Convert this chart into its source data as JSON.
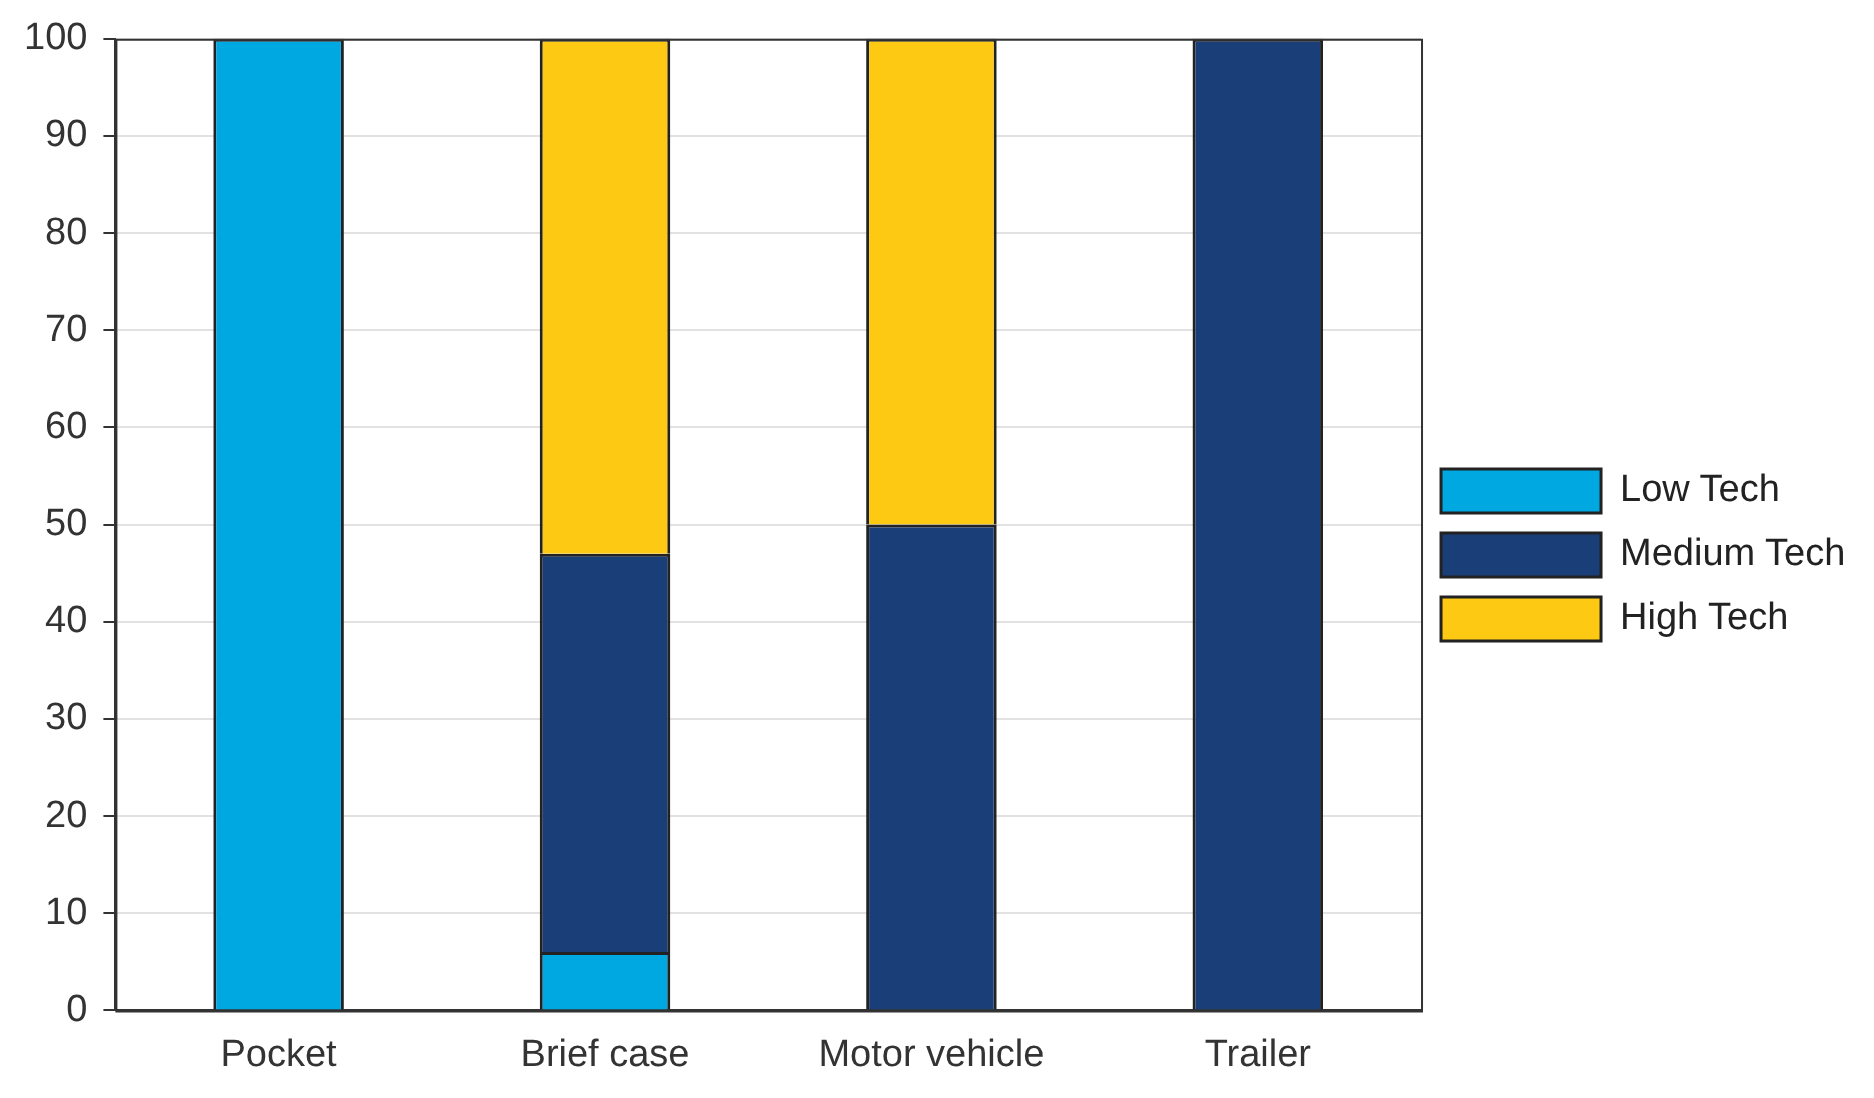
{
  "chart_data": {
    "type": "bar",
    "stacked": true,
    "categories": [
      "Pocket",
      "Brief case",
      "Motor vehicle",
      "Trailer"
    ],
    "series": [
      {
        "name": "Low Tech",
        "color": "#00a8e2",
        "values": [
          100,
          6,
          0,
          0
        ]
      },
      {
        "name": "Medium Tech",
        "color": "#1a3f78",
        "values": [
          0,
          41,
          50,
          100
        ]
      },
      {
        "name": "High Tech",
        "color": "#fdc913",
        "values": [
          0,
          53,
          50,
          0
        ]
      }
    ],
    "ylim": [
      0,
      100
    ],
    "yticks": [
      0,
      10,
      20,
      30,
      40,
      50,
      60,
      70,
      80,
      90,
      100
    ],
    "grid": "y",
    "legend": "right"
  }
}
